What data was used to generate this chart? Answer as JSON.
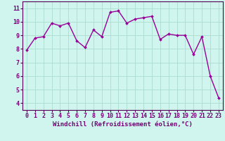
{
  "x": [
    0,
    1,
    2,
    3,
    4,
    5,
    6,
    7,
    8,
    9,
    10,
    11,
    12,
    13,
    14,
    15,
    16,
    17,
    18,
    19,
    20,
    21,
    22,
    23
  ],
  "y": [
    7.9,
    8.8,
    8.9,
    9.9,
    9.7,
    9.9,
    8.6,
    8.1,
    9.4,
    8.9,
    10.7,
    10.8,
    9.9,
    10.2,
    10.3,
    10.4,
    8.7,
    9.1,
    9.0,
    9.0,
    7.6,
    8.9,
    6.0,
    4.4
  ],
  "line_color": "#990099",
  "marker": "D",
  "markersize": 2.0,
  "linewidth": 1.0,
  "xlabel": "Windchill (Refroidissement éolien,°C)",
  "xlabel_fontsize": 6.5,
  "ylim": [
    3.5,
    11.5
  ],
  "yticks": [
    4,
    5,
    6,
    7,
    8,
    9,
    10,
    11
  ],
  "xlim": [
    -0.5,
    23.5
  ],
  "xticks": [
    0,
    1,
    2,
    3,
    4,
    5,
    6,
    7,
    8,
    9,
    10,
    11,
    12,
    13,
    14,
    15,
    16,
    17,
    18,
    19,
    20,
    21,
    22,
    23
  ],
  "background_color": "#cff5ee",
  "grid_color": "#aaddcc",
  "tick_fontsize": 6.0,
  "label_color": "#770077",
  "spine_color": "#550055"
}
